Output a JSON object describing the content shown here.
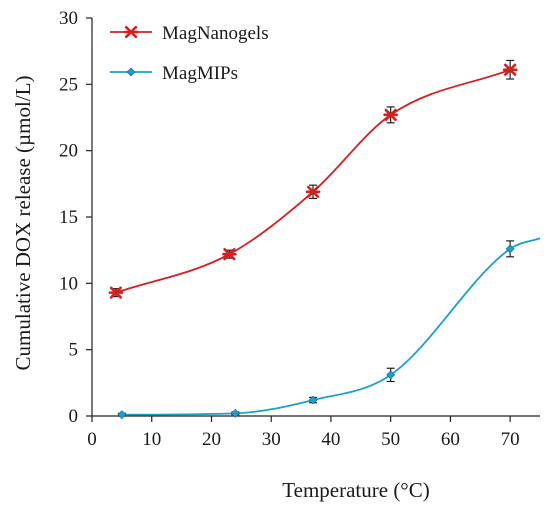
{
  "chart_data": {
    "type": "line",
    "xlabel": "Temperature (°C)",
    "ylabel": "Cumulative DOX release (µmol/L)",
    "xlim": [
      0,
      75
    ],
    "ylim": [
      0,
      30
    ],
    "xticks": [
      0,
      10,
      20,
      30,
      40,
      50,
      60,
      70
    ],
    "yticks": [
      0,
      5,
      10,
      15,
      20,
      25,
      30
    ],
    "grid": false,
    "legend_position": "top-left",
    "series": [
      {
        "name": "MagNanogels",
        "color": "#d62020",
        "marker": "asterisk",
        "x": [
          4,
          23,
          37,
          50,
          70
        ],
        "y": [
          9.3,
          12.2,
          16.9,
          22.7,
          26.1
        ],
        "error": [
          0.3,
          0.3,
          0.5,
          0.6,
          0.7
        ]
      },
      {
        "name": "MagMIPs",
        "color": "#1ba1c9",
        "marker": "diamond",
        "x": [
          5,
          24,
          37,
          50,
          70
        ],
        "y": [
          0.1,
          0.2,
          1.2,
          3.1,
          12.6
        ],
        "error": [
          0.1,
          0.1,
          0.2,
          0.5,
          0.6
        ]
      }
    ]
  }
}
